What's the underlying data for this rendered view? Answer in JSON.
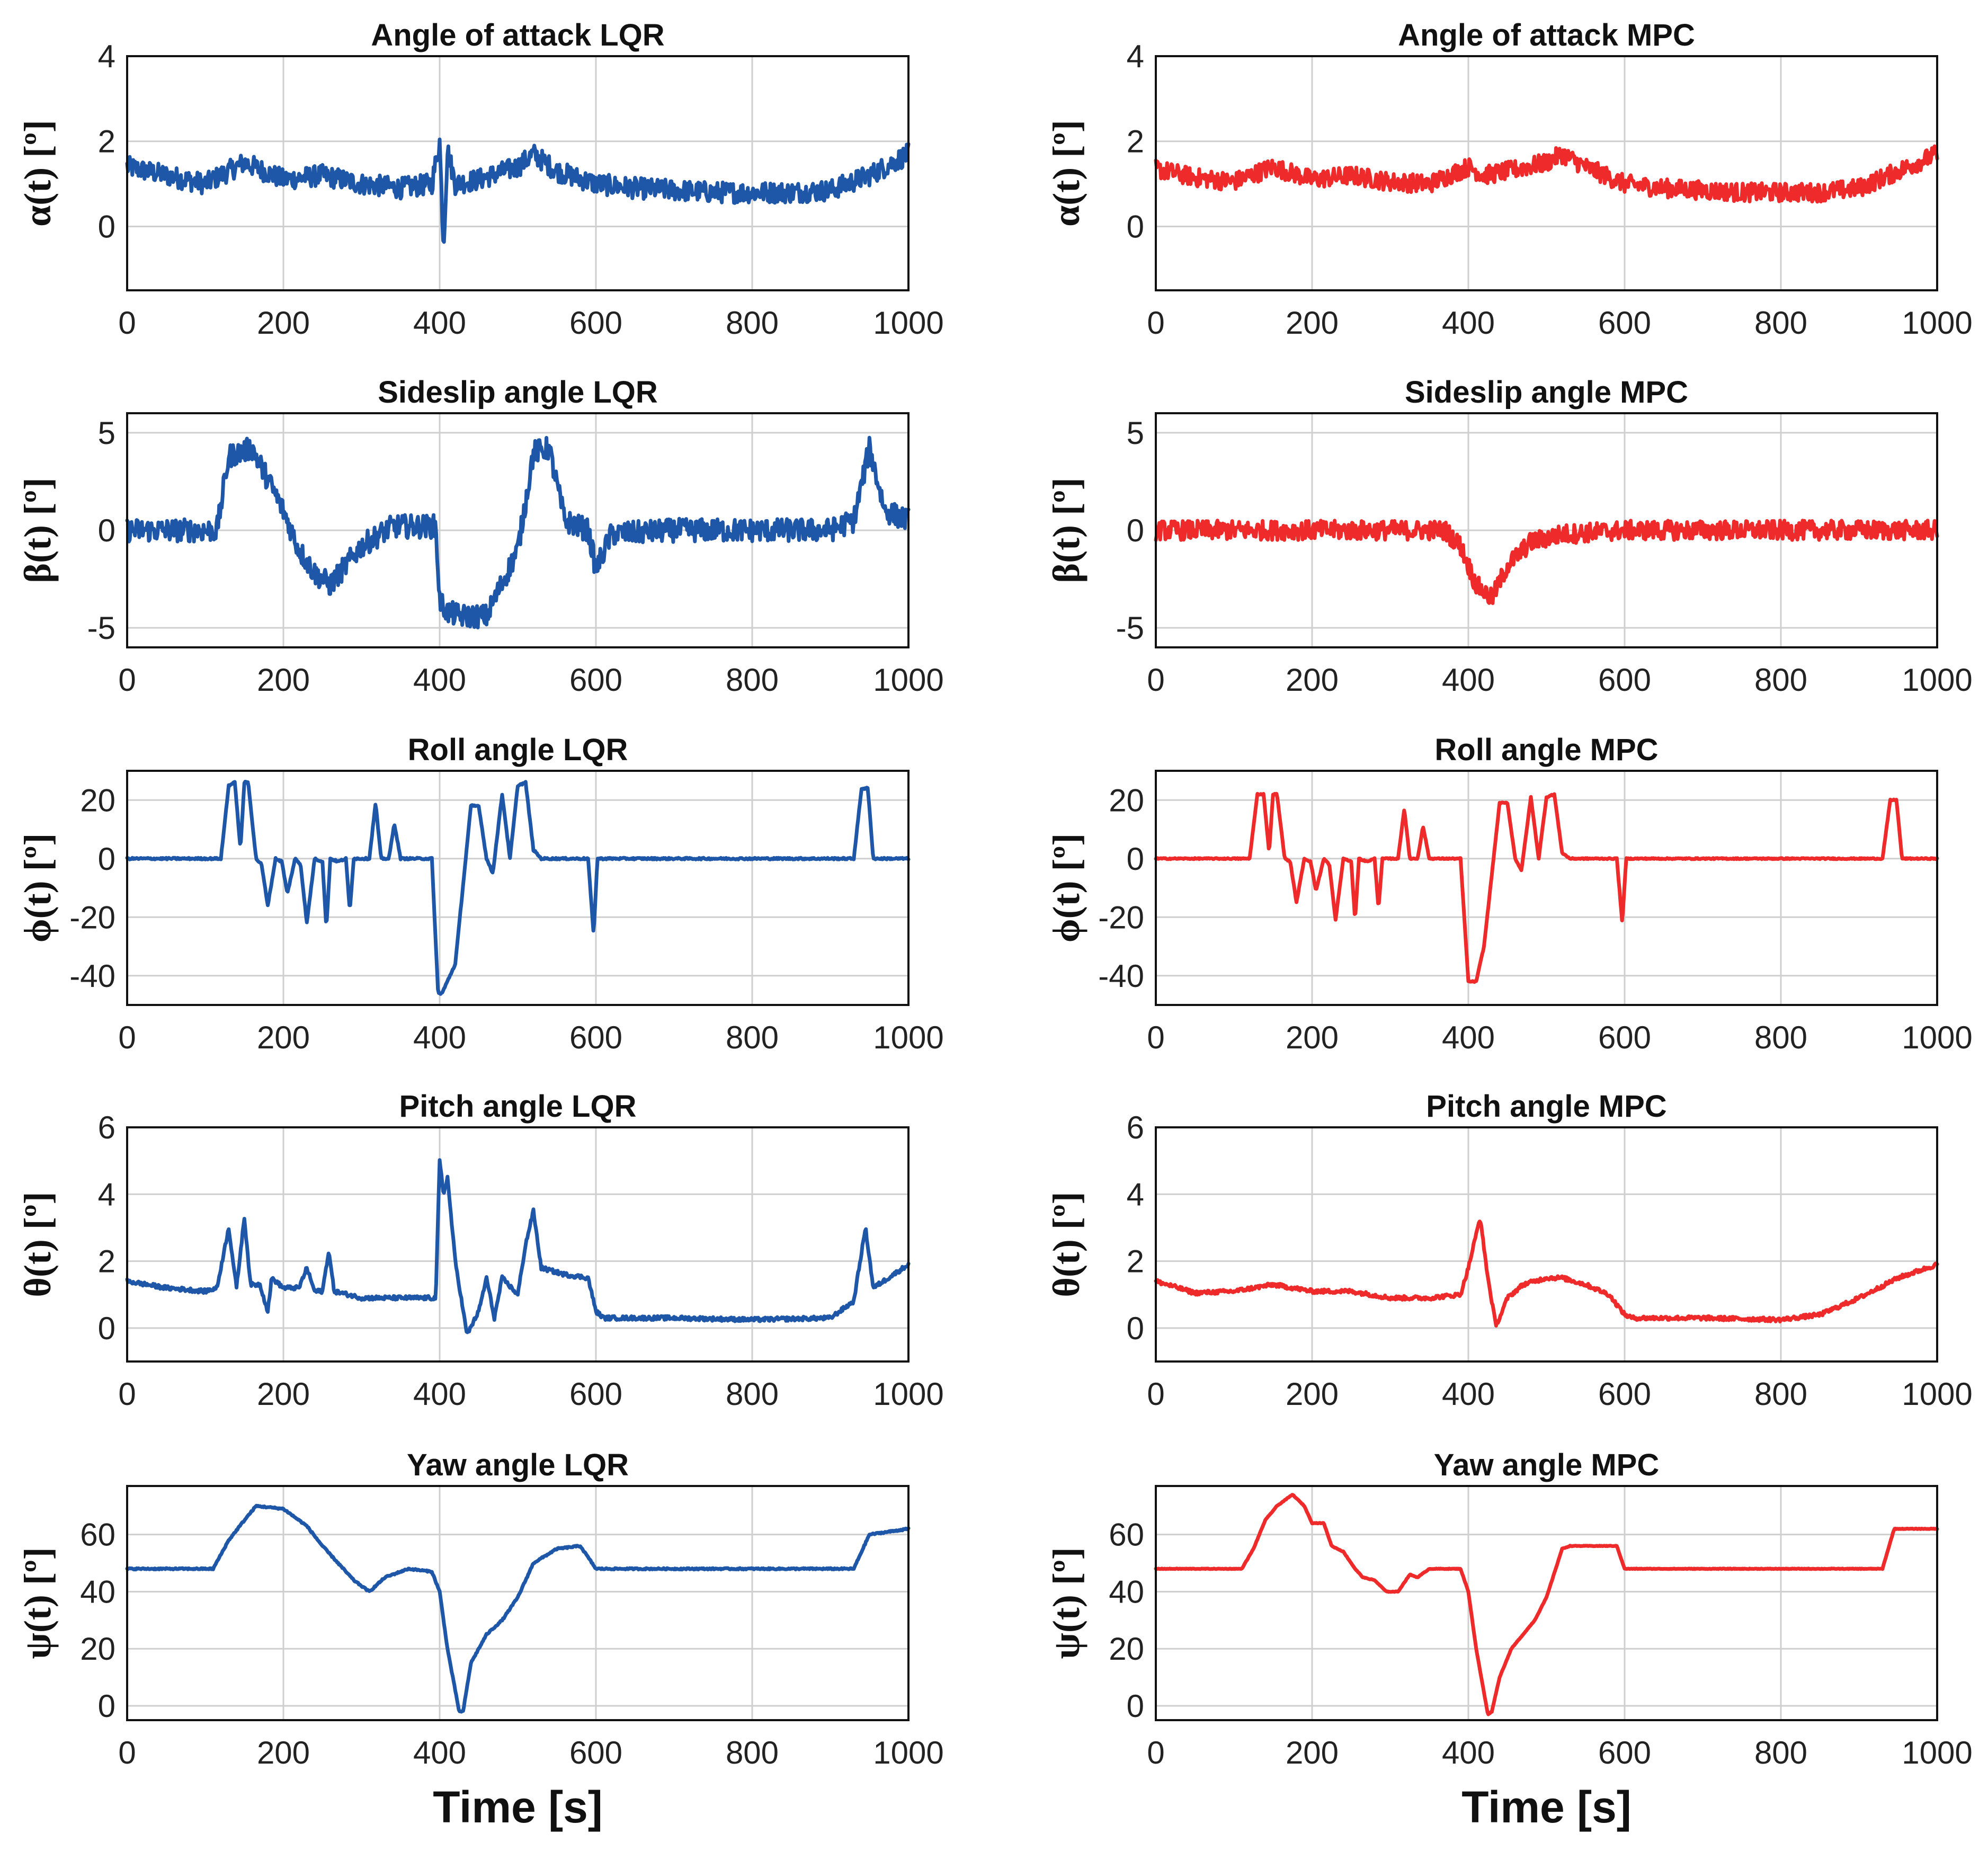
{
  "figure": {
    "xlabel_text": "Time [s]"
  },
  "colors": {
    "LQR": "#1f57a8",
    "MPC": "#ee2a2a"
  },
  "chart_data": [
    {
      "id": "alpha-lqr",
      "type": "line",
      "title": "Angle of attack LQR",
      "ylabel": "α(t) [º]",
      "xlim": [
        0,
        1000
      ],
      "ylim": [
        -1.5,
        4
      ],
      "yticks": [
        0,
        2,
        4
      ],
      "xticks": [
        0,
        200,
        400,
        600,
        800,
        1000
      ],
      "grid": true,
      "color": "#1f57a8",
      "noise": 0.25,
      "x": [
        0,
        50,
        100,
        120,
        150,
        200,
        250,
        300,
        350,
        390,
        400,
        405,
        410,
        420,
        450,
        500,
        520,
        550,
        600,
        650,
        700,
        750,
        800,
        850,
        900,
        950,
        1000
      ],
      "y": [
        1.4,
        1.2,
        1.0,
        1.2,
        1.5,
        1.1,
        1.2,
        1.0,
        0.9,
        1.0,
        2.0,
        -0.5,
        1.8,
        1.0,
        1.1,
        1.4,
        1.7,
        1.3,
        1.0,
        0.9,
        0.85,
        0.8,
        0.8,
        0.8,
        0.85,
        1.2,
        1.7
      ]
    },
    {
      "id": "alpha-mpc",
      "type": "line",
      "title": "Angle of attack MPC",
      "ylabel": "α(t) [º]",
      "xlim": [
        0,
        1000
      ],
      "ylim": [
        -1.5,
        4
      ],
      "yticks": [
        0,
        2,
        4
      ],
      "xticks": [
        0,
        200,
        400,
        600,
        800,
        1000
      ],
      "grid": true,
      "color": "#ee2a2a",
      "noise": 0.22,
      "x": [
        0,
        50,
        100,
        150,
        200,
        250,
        300,
        350,
        400,
        420,
        450,
        500,
        520,
        550,
        600,
        650,
        700,
        750,
        800,
        850,
        900,
        950,
        1000
      ],
      "y": [
        1.35,
        1.15,
        1.05,
        1.4,
        1.1,
        1.2,
        1.05,
        1.0,
        1.4,
        1.2,
        1.3,
        1.5,
        1.7,
        1.4,
        1.0,
        0.9,
        0.85,
        0.8,
        0.8,
        0.8,
        0.9,
        1.3,
        1.7
      ]
    },
    {
      "id": "beta-lqr",
      "type": "line",
      "title": "Sideslip angle LQR",
      "ylabel": "β(t) [º]",
      "xlim": [
        0,
        1000
      ],
      "ylim": [
        -6,
        6
      ],
      "yticks": [
        -5,
        0,
        5
      ],
      "xticks": [
        0,
        200,
        400,
        600,
        800,
        1000
      ],
      "grid": true,
      "color": "#1f57a8",
      "noise": 0.6,
      "x": [
        0,
        100,
        115,
        130,
        160,
        200,
        220,
        240,
        260,
        300,
        340,
        395,
        400,
        410,
        430,
        460,
        500,
        520,
        540,
        560,
        590,
        600,
        620,
        700,
        800,
        900,
        930,
        950,
        970,
        1000
      ],
      "y": [
        0,
        0,
        0,
        3.8,
        4.2,
        1.0,
        -1.0,
        -2.2,
        -2.8,
        -0.8,
        0.2,
        0.2,
        -3.6,
        -4.2,
        -4.4,
        -4.4,
        -1.0,
        4.0,
        4.2,
        0.5,
        0.0,
        -2.0,
        -0.2,
        0,
        0,
        0,
        0.5,
        4.2,
        1.0,
        0.5
      ]
    },
    {
      "id": "beta-mpc",
      "type": "line",
      "title": "Sideslip angle MPC",
      "ylabel": "β(t) [º]",
      "xlim": [
        0,
        1000
      ],
      "ylim": [
        -6,
        6
      ],
      "yticks": [
        -5,
        0,
        5
      ],
      "xticks": [
        0,
        200,
        400,
        600,
        800,
        1000
      ],
      "grid": true,
      "color": "#ee2a2a",
      "noise": 0.5,
      "x": [
        0,
        100,
        200,
        300,
        370,
        390,
        410,
        430,
        450,
        480,
        520,
        600,
        700,
        800,
        900,
        1000
      ],
      "y": [
        0,
        0,
        0,
        0,
        0,
        -0.8,
        -2.8,
        -3.5,
        -1.8,
        -0.6,
        -0.2,
        0,
        0,
        0,
        0,
        0
      ]
    },
    {
      "id": "phi-lqr",
      "type": "line",
      "title": "Roll angle LQR",
      "ylabel": "ϕ(t) [º]",
      "xlim": [
        0,
        1000
      ],
      "ylim": [
        -50,
        30
      ],
      "yticks": [
        -40,
        -20,
        0,
        20
      ],
      "xticks": [
        0,
        200,
        400,
        600,
        800,
        1000
      ],
      "grid": true,
      "color": "#1f57a8",
      "noise": 0.3,
      "x": [
        0,
        110,
        120,
        130,
        138,
        145,
        150,
        155,
        165,
        172,
        180,
        190,
        198,
        205,
        215,
        222,
        230,
        240,
        250,
        255,
        260,
        270,
        280,
        285,
        290,
        300,
        310,
        318,
        325,
        335,
        342,
        350,
        360,
        390,
        398,
        403,
        420,
        440,
        450,
        460,
        468,
        480,
        490,
        500,
        510,
        520,
        530,
        540,
        590,
        597,
        602,
        610,
        700,
        800,
        900,
        930,
        940,
        948,
        955,
        1000
      ],
      "y": [
        0,
        0,
        0,
        25,
        26,
        3,
        26,
        26,
        0,
        -2,
        -16,
        0,
        -1,
        -12,
        0,
        -2,
        -22,
        0,
        -1,
        -24,
        0,
        -1,
        0,
        -18,
        0,
        0,
        0,
        19,
        0,
        0,
        12,
        0,
        0,
        0,
        -46,
        -46,
        -36,
        18,
        18,
        0,
        -5,
        22,
        0,
        25,
        26,
        3,
        0,
        0,
        0,
        -26,
        0,
        0,
        0,
        0,
        0,
        0,
        24,
        24,
        0,
        0
      ]
    },
    {
      "id": "phi-mpc",
      "type": "line",
      "title": "Roll angle MPC",
      "ylabel": "ϕ(t) [º]",
      "xlim": [
        0,
        1000
      ],
      "ylim": [
        -50,
        30
      ],
      "yticks": [
        -40,
        -20,
        0,
        20
      ],
      "xticks": [
        0,
        200,
        400,
        600,
        800,
        1000
      ],
      "grid": true,
      "color": "#ee2a2a",
      "noise": 0.2,
      "x": [
        0,
        110,
        120,
        130,
        138,
        145,
        150,
        155,
        165,
        172,
        180,
        190,
        198,
        205,
        215,
        222,
        230,
        240,
        250,
        255,
        260,
        270,
        280,
        285,
        290,
        300,
        310,
        318,
        325,
        335,
        342,
        350,
        360,
        390,
        400,
        410,
        420,
        440,
        450,
        460,
        468,
        480,
        490,
        500,
        510,
        520,
        530,
        540,
        590,
        597,
        602,
        610,
        700,
        800,
        900,
        930,
        940,
        948,
        955,
        1000
      ],
      "y": [
        0,
        0,
        0,
        22,
        22,
        2,
        22,
        22,
        0,
        -1,
        -15,
        0,
        -1,
        -11,
        0,
        -2,
        -21,
        0,
        -1,
        -21,
        0,
        -1,
        0,
        -17,
        0,
        0,
        0,
        17,
        0,
        0,
        11,
        0,
        0,
        0,
        -42,
        -42,
        -30,
        19,
        19,
        0,
        -4,
        21,
        0,
        21,
        22,
        2,
        0,
        0,
        0,
        -22,
        0,
        0,
        0,
        0,
        0,
        0,
        20,
        20,
        0,
        0
      ]
    },
    {
      "id": "theta-lqr",
      "type": "line",
      "title": "Pitch angle LQR",
      "ylabel": "θ(t) [º]",
      "xlim": [
        0,
        1000
      ],
      "ylim": [
        -1,
        6
      ],
      "yticks": [
        0,
        2,
        4,
        6
      ],
      "xticks": [
        0,
        200,
        400,
        600,
        800,
        1000
      ],
      "grid": true,
      "color": "#1f57a8",
      "noise": 0.06,
      "x": [
        0,
        50,
        100,
        115,
        130,
        140,
        150,
        158,
        170,
        180,
        185,
        200,
        220,
        230,
        240,
        250,
        258,
        265,
        300,
        350,
        395,
        400,
        405,
        410,
        420,
        435,
        450,
        460,
        470,
        480,
        500,
        510,
        520,
        530,
        560,
        590,
        600,
        610,
        700,
        800,
        900,
        930,
        945,
        955,
        1000
      ],
      "y": [
        1.4,
        1.2,
        1.1,
        1.2,
        3.0,
        1.2,
        3.3,
        1.3,
        1.3,
        0.5,
        1.5,
        1.2,
        1.2,
        1.8,
        1.1,
        1.1,
        2.3,
        1.1,
        0.9,
        0.9,
        0.9,
        5.0,
        4.0,
        4.5,
        2.0,
        -0.2,
        0.5,
        1.5,
        0.3,
        1.5,
        1.0,
        2.5,
        3.5,
        1.8,
        1.6,
        1.5,
        0.5,
        0.3,
        0.3,
        0.25,
        0.3,
        0.8,
        3.0,
        1.2,
        1.9
      ]
    },
    {
      "id": "theta-mpc",
      "type": "line",
      "title": "Pitch angle MPC",
      "ylabel": "θ(t) [º]",
      "xlim": [
        0,
        1000
      ],
      "ylim": [
        -1,
        6
      ],
      "yticks": [
        0,
        2,
        4,
        6
      ],
      "xticks": [
        0,
        200,
        400,
        600,
        800,
        1000
      ],
      "grid": true,
      "color": "#ee2a2a",
      "noise": 0.06,
      "x": [
        0,
        50,
        100,
        150,
        200,
        250,
        300,
        350,
        390,
        400,
        415,
        425,
        435,
        440,
        450,
        470,
        500,
        520,
        550,
        580,
        600,
        610,
        700,
        800,
        850,
        900,
        950,
        1000
      ],
      "y": [
        1.4,
        1.05,
        1.1,
        1.3,
        1.1,
        1.1,
        0.9,
        0.9,
        1.0,
        1.8,
        3.3,
        1.5,
        0.1,
        0.3,
        0.9,
        1.3,
        1.5,
        1.5,
        1.3,
        1.0,
        0.4,
        0.3,
        0.3,
        0.25,
        0.4,
        0.9,
        1.5,
        1.9
      ]
    },
    {
      "id": "psi-lqr",
      "type": "line",
      "title": "Yaw angle LQR",
      "ylabel": "ψ(t) [º]",
      "xlim": [
        0,
        1000
      ],
      "ylim": [
        -5,
        77
      ],
      "yticks": [
        0,
        20,
        40,
        60
      ],
      "xticks": [
        0,
        200,
        400,
        600,
        800,
        1000
      ],
      "grid": true,
      "color": "#1f57a8",
      "noise": 0.25,
      "x": [
        0,
        110,
        130,
        150,
        165,
        200,
        230,
        250,
        270,
        290,
        310,
        330,
        360,
        390,
        400,
        410,
        425,
        430,
        440,
        460,
        480,
        500,
        520,
        550,
        580,
        600,
        700,
        800,
        900,
        930,
        950,
        1000
      ],
      "y": [
        48,
        48,
        58,
        65,
        70,
        69,
        63,
        56,
        50,
        44,
        40,
        45,
        48,
        47,
        40,
        20,
        -2,
        -2,
        15,
        25,
        30,
        38,
        50,
        55,
        56,
        48,
        48,
        48,
        48,
        48,
        60,
        62
      ]
    },
    {
      "id": "psi-mpc",
      "type": "line",
      "title": "Yaw angle MPC",
      "ylabel": "ψ(t) [º]",
      "xlim": [
        0,
        1000
      ],
      "ylim": [
        -5,
        77
      ],
      "yticks": [
        0,
        20,
        40,
        60
      ],
      "xticks": [
        0,
        200,
        400,
        600,
        800,
        1000
      ],
      "grid": true,
      "color": "#ee2a2a",
      "noise": 0.1,
      "x": [
        0,
        110,
        125,
        140,
        155,
        175,
        190,
        200,
        215,
        225,
        240,
        255,
        265,
        280,
        295,
        310,
        325,
        335,
        350,
        390,
        400,
        410,
        425,
        430,
        440,
        455,
        470,
        485,
        500,
        520,
        530,
        590,
        600,
        700,
        800,
        900,
        930,
        945,
        1000
      ],
      "y": [
        48,
        48,
        55,
        65,
        70,
        74,
        70,
        64,
        64,
        56,
        54,
        48,
        45,
        44,
        40,
        40,
        46,
        45,
        48,
        48,
        40,
        20,
        -3,
        -2,
        10,
        20,
        25,
        30,
        38,
        55,
        56,
        56,
        48,
        48,
        48,
        48,
        48,
        62,
        62
      ]
    }
  ]
}
